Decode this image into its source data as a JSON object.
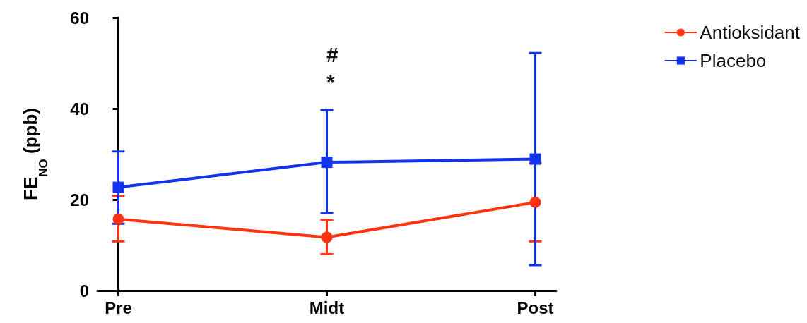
{
  "chart_data": {
    "type": "line",
    "ylabel": "FE$_{NO}$ (ppb)",
    "categories": [
      "Pre",
      "Midt",
      "Post"
    ],
    "series": [
      {
        "name": "Antioksidant",
        "color": "#ff3311",
        "marker": "circle",
        "values": [
          15.7,
          11.7,
          19.4
        ],
        "errors": [
          [
            10.8,
            20.8
          ],
          [
            8.0,
            15.6
          ],
          [
            10.8,
            28.1
          ]
        ]
      },
      {
        "name": "Placebo",
        "color": "#1133ee",
        "marker": "square",
        "values": [
          22.7,
          28.2,
          28.9
        ],
        "errors": [
          [
            14.7,
            30.6
          ],
          [
            17.0,
            39.7
          ],
          [
            5.6,
            52.2
          ]
        ]
      }
    ],
    "ylim": [
      0,
      60
    ],
    "yticks": [
      0,
      20,
      40,
      60
    ],
    "grid": false,
    "legend": "top right",
    "line_style": "solid",
    "annotations": [
      "#",
      "*"
    ]
  }
}
